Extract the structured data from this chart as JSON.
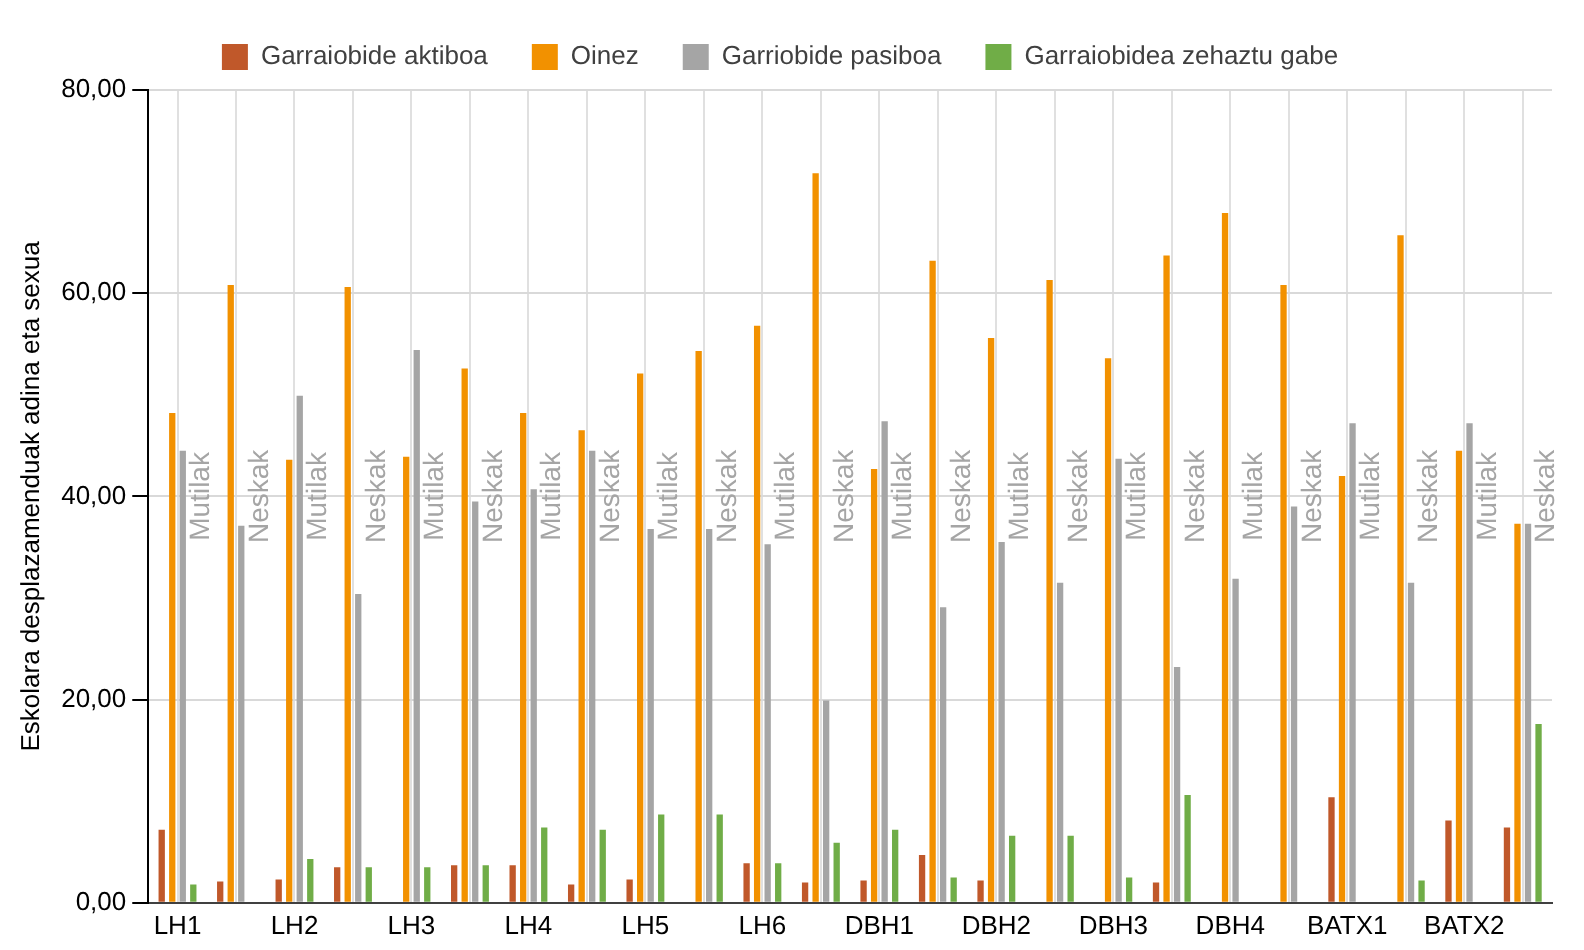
{
  "chart_data": {
    "type": "bar",
    "ylabel": "Eskolara desplazamenduak adina eta sexua",
    "categories": [
      "LH1",
      null,
      "LH2",
      null,
      "LH3",
      null,
      "LH4",
      null,
      "LH5",
      null,
      "LH6",
      null,
      "DBH1",
      null,
      "DBH2",
      null,
      "DBH3",
      null,
      "DBH4",
      null,
      "BATX1",
      null,
      "BATX2",
      null
    ],
    "annotations": [
      "Mutilak",
      "Neskak",
      "Mutilak",
      "Neskak",
      "Mutilak",
      "Neskak",
      "Mutilak",
      "Neskak",
      "Mutilak",
      "Neskak",
      "Mutilak",
      "Neskak",
      "Mutilak",
      "Neskak",
      "Mutilak",
      "Neskak",
      "Mutilak",
      "Neskak",
      "Mutilak",
      "Neskak",
      "Mutilak",
      "Neskak",
      "Mutilak",
      "Neskak"
    ],
    "series": [
      {
        "name": "Garraiobide aktiboa",
        "color": "#c0582a",
        "values": [
          7.2,
          2.1,
          2.3,
          3.5,
          null,
          3.7,
          3.7,
          1.8,
          2.3,
          null,
          3.9,
          2.0,
          2.2,
          4.7,
          2.2,
          null,
          null,
          2.0,
          null,
          null,
          10.4,
          null,
          8.1,
          7.4
        ]
      },
      {
        "name": "Oinez",
        "color": "#f29100",
        "values": [
          48.2,
          60.8,
          43.6,
          60.6,
          43.9,
          52.6,
          48.2,
          46.5,
          52.1,
          54.3,
          56.8,
          71.8,
          42.7,
          63.2,
          55.6,
          61.3,
          53.6,
          63.7,
          67.9,
          60.8,
          42.0,
          65.7,
          44.5,
          37.3
        ]
      },
      {
        "name": "Garriobide pasiboa",
        "color": "#a5a5a5",
        "values": [
          44.5,
          37.1,
          49.9,
          30.4,
          54.4,
          39.5,
          40.7,
          44.5,
          36.8,
          36.8,
          35.3,
          19.9,
          47.4,
          29.1,
          35.5,
          31.5,
          43.7,
          23.2,
          31.9,
          39.0,
          47.2,
          31.5,
          47.2,
          37.3
        ]
      },
      {
        "name": "Garraiobidea zehaztu gabe",
        "color": "#70ad47",
        "values": [
          1.8,
          null,
          4.3,
          3.5,
          3.5,
          3.7,
          7.4,
          7.2,
          8.7,
          8.7,
          3.9,
          5.9,
          7.2,
          2.5,
          6.6,
          6.6,
          2.5,
          10.6,
          null,
          null,
          null,
          2.2,
          null,
          17.6
        ]
      }
    ],
    "ylim": [
      0,
      80
    ],
    "yticks": [
      {
        "value": 0,
        "label": "0,00"
      },
      {
        "value": 20,
        "label": "20,00"
      },
      {
        "value": 40,
        "label": "40,00"
      },
      {
        "value": 60,
        "label": "60,00"
      },
      {
        "value": 80,
        "label": "80,00"
      }
    ],
    "grid": true,
    "legend": "top"
  }
}
